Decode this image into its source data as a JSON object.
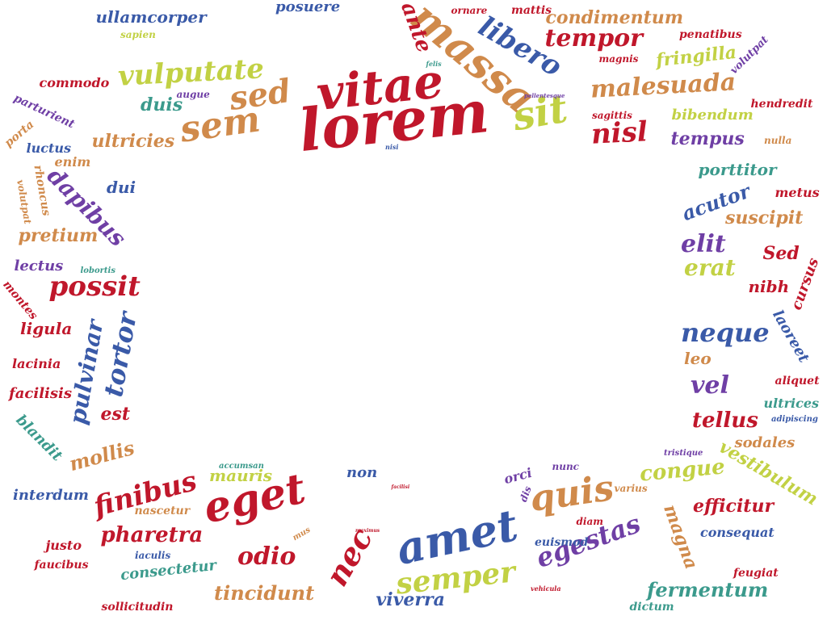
{
  "colors": {
    "red": "#c0172b",
    "brown": "#d08a4b",
    "blue": "#3a5aa8",
    "green": "#c2d144",
    "purple": "#6f3fa5",
    "teal": "#3b9a8c"
  },
  "words": [
    {
      "text": "lorem",
      "color": "red"
    },
    {
      "text": "vitae",
      "color": "red"
    },
    {
      "text": "massa",
      "color": "brown"
    },
    {
      "text": "amet",
      "color": "blue"
    },
    {
      "text": "sem",
      "color": "brown"
    },
    {
      "text": "sit",
      "color": "green"
    },
    {
      "text": "sed",
      "color": "brown"
    },
    {
      "text": "eget",
      "color": "red"
    },
    {
      "text": "quis",
      "color": "brown"
    },
    {
      "text": "libero",
      "color": "blue"
    },
    {
      "text": "nec",
      "color": "red"
    },
    {
      "text": "egestas",
      "color": "purple"
    },
    {
      "text": "semper",
      "color": "green"
    },
    {
      "text": "tempor",
      "color": "red"
    },
    {
      "text": "vulputate",
      "color": "green"
    },
    {
      "text": "malesuada",
      "color": "brown"
    },
    {
      "text": "nisl",
      "color": "red"
    },
    {
      "text": "ante",
      "color": "red"
    },
    {
      "text": "condimentum",
      "color": "brown"
    },
    {
      "text": "fringilla",
      "color": "green"
    },
    {
      "text": "duis",
      "color": "teal"
    },
    {
      "text": "ultricies",
      "color": "brown"
    },
    {
      "text": "tempus",
      "color": "purple"
    },
    {
      "text": "bibendum",
      "color": "green"
    },
    {
      "text": "commodo",
      "color": "red"
    },
    {
      "text": "ullamcorper",
      "color": "blue"
    },
    {
      "text": "posuere",
      "color": "blue"
    },
    {
      "text": "sapien",
      "color": "green"
    },
    {
      "text": "felis",
      "color": "teal"
    },
    {
      "text": "ornare",
      "color": "red"
    },
    {
      "text": "mattis",
      "color": "red"
    },
    {
      "text": "magnis",
      "color": "red"
    },
    {
      "text": "penatibus",
      "color": "red"
    },
    {
      "text": "volutpat",
      "color": "purple"
    },
    {
      "text": "augue",
      "color": "purple"
    },
    {
      "text": "pellentesque",
      "color": "purple"
    },
    {
      "text": "sagittis",
      "color": "red"
    },
    {
      "text": "hendredit",
      "color": "red"
    },
    {
      "text": "nulla",
      "color": "brown"
    },
    {
      "text": "parturient",
      "color": "purple"
    },
    {
      "text": "porta",
      "color": "brown"
    },
    {
      "text": "luctus",
      "color": "blue"
    },
    {
      "text": "enim",
      "color": "brown"
    },
    {
      "text": "nisi",
      "color": "blue"
    },
    {
      "text": "dui",
      "color": "blue"
    },
    {
      "text": "dapibus",
      "color": "purple"
    },
    {
      "text": "rhoncus",
      "color": "brown"
    },
    {
      "text": "volutpat",
      "color": "brown"
    },
    {
      "text": "pretium",
      "color": "brown"
    },
    {
      "text": "porttitor",
      "color": "teal"
    },
    {
      "text": "acutor",
      "color": "blue"
    },
    {
      "text": "metus",
      "color": "red"
    },
    {
      "text": "suscipit",
      "color": "brown"
    },
    {
      "text": "elit",
      "color": "purple"
    },
    {
      "text": "Sed",
      "color": "red"
    },
    {
      "text": "erat",
      "color": "green"
    },
    {
      "text": "nibh",
      "color": "red"
    },
    {
      "text": "cursus",
      "color": "red"
    },
    {
      "text": "lectus",
      "color": "purple"
    },
    {
      "text": "lobortis",
      "color": "teal"
    },
    {
      "text": "possit",
      "color": "red"
    },
    {
      "text": "montes",
      "color": "red"
    },
    {
      "text": "ligula",
      "color": "red"
    },
    {
      "text": "pulvinar",
      "color": "blue"
    },
    {
      "text": "tortor",
      "color": "blue"
    },
    {
      "text": "lacinia",
      "color": "red"
    },
    {
      "text": "facilisis",
      "color": "red"
    },
    {
      "text": "est",
      "color": "red"
    },
    {
      "text": "blandit",
      "color": "teal"
    },
    {
      "text": "mollis",
      "color": "brown"
    },
    {
      "text": "neque",
      "color": "blue"
    },
    {
      "text": "laoreet",
      "color": "blue"
    },
    {
      "text": "leo",
      "color": "brown"
    },
    {
      "text": "aliquet",
      "color": "red"
    },
    {
      "text": "vel",
      "color": "purple"
    },
    {
      "text": "ultrices",
      "color": "teal"
    },
    {
      "text": "adipiscing",
      "color": "blue"
    },
    {
      "text": "tellus",
      "color": "red"
    },
    {
      "text": "sodales",
      "color": "brown"
    },
    {
      "text": "tristique",
      "color": "purple"
    },
    {
      "text": "vestibulum",
      "color": "green"
    },
    {
      "text": "congue",
      "color": "green"
    },
    {
      "text": "accumsan",
      "color": "teal"
    },
    {
      "text": "mauris",
      "color": "green"
    },
    {
      "text": "non",
      "color": "blue"
    },
    {
      "text": "orci",
      "color": "purple"
    },
    {
      "text": "nunc",
      "color": "purple"
    },
    {
      "text": "dis",
      "color": "purple"
    },
    {
      "text": "facilisi",
      "color": "red"
    },
    {
      "text": "varius",
      "color": "brown"
    },
    {
      "text": "efficitur",
      "color": "red"
    },
    {
      "text": "interdum",
      "color": "blue"
    },
    {
      "text": "finibus",
      "color": "red"
    },
    {
      "text": "nascetur",
      "color": "brown"
    },
    {
      "text": "magna",
      "color": "brown"
    },
    {
      "text": "diam",
      "color": "red"
    },
    {
      "text": "consequat",
      "color": "blue"
    },
    {
      "text": "justo",
      "color": "red"
    },
    {
      "text": "pharetra",
      "color": "red"
    },
    {
      "text": "mus",
      "color": "brown"
    },
    {
      "text": "maximus",
      "color": "red"
    },
    {
      "text": "euismod",
      "color": "blue"
    },
    {
      "text": "iaculis",
      "color": "blue"
    },
    {
      "text": "faucibus",
      "color": "red"
    },
    {
      "text": "consectetur",
      "color": "teal"
    },
    {
      "text": "odio",
      "color": "red"
    },
    {
      "text": "feugiat",
      "color": "red"
    },
    {
      "text": "tincidunt",
      "color": "brown"
    },
    {
      "text": "vehicula",
      "color": "red"
    },
    {
      "text": "viverra",
      "color": "blue"
    },
    {
      "text": "fermentum",
      "color": "teal"
    },
    {
      "text": "sollicitudin",
      "color": "red"
    },
    {
      "text": "dictum",
      "color": "teal"
    }
  ]
}
